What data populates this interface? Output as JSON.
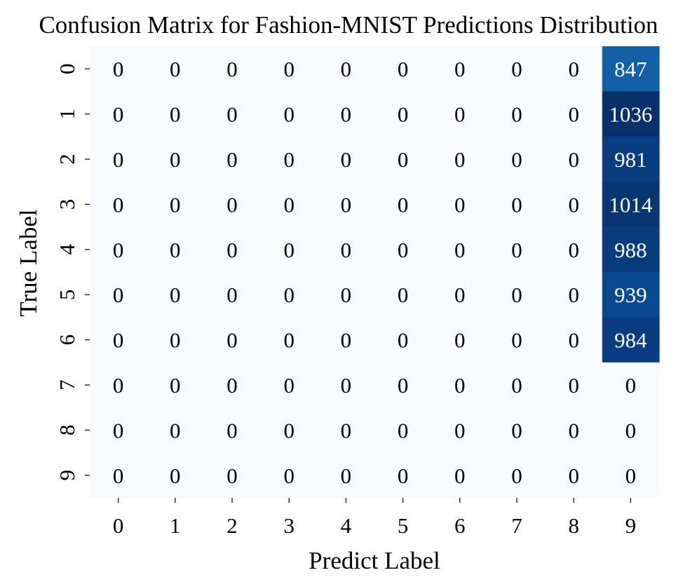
{
  "chart_data": {
    "type": "heatmap",
    "title": "Confusion Matrix for Fashion-MNIST Predictions Distribution",
    "xlabel": "Predict Label",
    "ylabel": "True Label",
    "x_categories": [
      "0",
      "1",
      "2",
      "3",
      "4",
      "5",
      "6",
      "7",
      "8",
      "9"
    ],
    "y_categories": [
      "0",
      "1",
      "2",
      "3",
      "4",
      "5",
      "6",
      "7",
      "8",
      "9"
    ],
    "colormap": "Blues",
    "colorbar": false,
    "value_range": [
      0,
      1036
    ],
    "values": [
      [
        0,
        0,
        0,
        0,
        0,
        0,
        0,
        0,
        0,
        847
      ],
      [
        0,
        0,
        0,
        0,
        0,
        0,
        0,
        0,
        0,
        1036
      ],
      [
        0,
        0,
        0,
        0,
        0,
        0,
        0,
        0,
        0,
        981
      ],
      [
        0,
        0,
        0,
        0,
        0,
        0,
        0,
        0,
        0,
        1014
      ],
      [
        0,
        0,
        0,
        0,
        0,
        0,
        0,
        0,
        0,
        988
      ],
      [
        0,
        0,
        0,
        0,
        0,
        0,
        0,
        0,
        0,
        939
      ],
      [
        0,
        0,
        0,
        0,
        0,
        0,
        0,
        0,
        0,
        984
      ],
      [
        0,
        0,
        0,
        0,
        0,
        0,
        0,
        0,
        0,
        0
      ],
      [
        0,
        0,
        0,
        0,
        0,
        0,
        0,
        0,
        0,
        0
      ],
      [
        0,
        0,
        0,
        0,
        0,
        0,
        0,
        0,
        0,
        0
      ]
    ]
  }
}
